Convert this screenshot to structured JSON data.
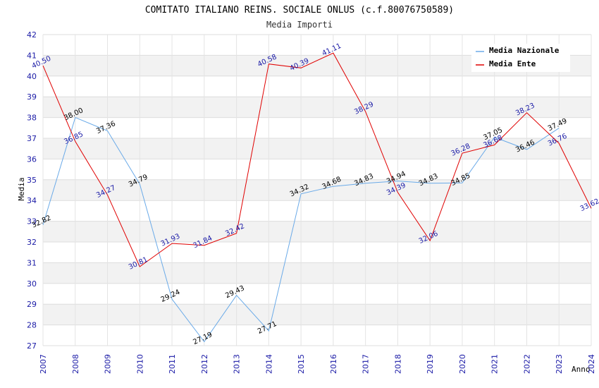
{
  "chart_data": {
    "type": "line",
    "title": "COMITATO ITALIANO REINS. SOCIALE ONLUS (c.f.80076750589)",
    "subtitle": "Media Importi",
    "xlabel": "Anno",
    "ylabel": "Media",
    "ylim": [
      27,
      42
    ],
    "yticks": [
      "27",
      "28",
      "29",
      "30",
      "31",
      "32",
      "33",
      "34",
      "35",
      "36",
      "37",
      "38",
      "39",
      "40",
      "41",
      "42"
    ],
    "categories": [
      "2007",
      "2008",
      "2009",
      "2010",
      "2011",
      "2012",
      "2013",
      "2014",
      "2015",
      "2016",
      "2017",
      "2018",
      "2019",
      "2020",
      "2021",
      "2022",
      "2023",
      "2024"
    ],
    "series": [
      {
        "name": "Media Nazionale",
        "color": "#6aaae8",
        "values": [
          32.82,
          38.0,
          37.36,
          34.79,
          29.24,
          27.19,
          29.43,
          27.71,
          34.32,
          34.68,
          34.83,
          34.94,
          34.83,
          34.85,
          37.05,
          36.46,
          37.49,
          null
        ],
        "labels": [
          "32.82",
          "38.00",
          "37.36",
          "34.79",
          "29.24",
          "27.19",
          "29.43",
          "27.71",
          "34.32",
          "34.68",
          "34.83",
          "34.94",
          "34.83",
          "34.85",
          "37.05",
          "36.46",
          "37.49",
          ""
        ]
      },
      {
        "name": "Media Ente",
        "color": "#e00000",
        "values": [
          40.5,
          36.85,
          34.27,
          30.81,
          31.93,
          31.84,
          32.42,
          40.58,
          40.39,
          41.11,
          38.29,
          34.39,
          32.06,
          36.28,
          36.68,
          38.23,
          36.76,
          33.62
        ],
        "labels": [
          "40.50",
          "36.85",
          "34.27",
          "30.81",
          "31.93",
          "31.84",
          "32.42",
          "40.58",
          "40.39",
          "41.11",
          "38.29",
          "34.39",
          "32.06",
          "36.28",
          "36.68",
          "38.23",
          "36.76",
          "33.62"
        ]
      }
    ],
    "legend_position": "top-right",
    "grid": true
  }
}
